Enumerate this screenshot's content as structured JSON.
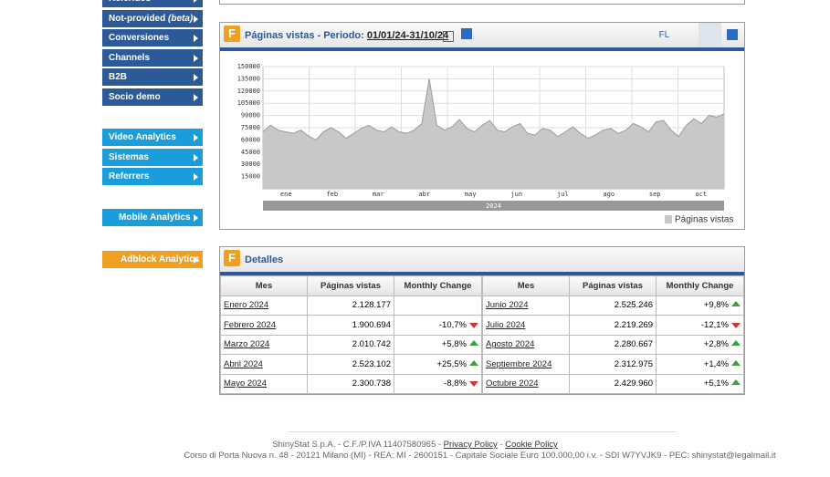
{
  "sidebar": {
    "group1": [
      {
        "label": "Referidos"
      },
      {
        "label": "Not-provided",
        "note": "(beta)"
      },
      {
        "label": "Conversiones"
      },
      {
        "label": "Channels"
      },
      {
        "label": "B2B"
      },
      {
        "label": "Socio demo"
      }
    ],
    "group2": [
      {
        "label": "Video Analytics"
      },
      {
        "label": "Sistemas"
      },
      {
        "label": "Referrers"
      }
    ],
    "mobile": "Mobile Analytics",
    "adblock": "Adblock Analytics"
  },
  "chart_panel": {
    "title": "Páginas vistas - Periodo:",
    "period": "01/01/24-31/10/24",
    "button": "FL"
  },
  "chart_data": {
    "type": "area",
    "color": "#c8c8c8",
    "line_color": "#9a9a9a",
    "values": [
      70000,
      78000,
      72000,
      70000,
      68000,
      72000,
      65000,
      60000,
      70000,
      75000,
      70000,
      62000,
      68000,
      74000,
      78000,
      72000,
      70000,
      76000,
      70000,
      68000,
      72000,
      80000,
      135000,
      78000,
      72000,
      76000,
      85000,
      74000,
      70000,
      78000,
      84000,
      72000,
      70000,
      76000,
      80000,
      68000,
      66000,
      74000,
      72000,
      64000,
      70000,
      76000,
      68000,
      62000,
      66000,
      72000,
      74000,
      68000,
      72000,
      80000,
      76000,
      70000,
      82000,
      84000,
      72000,
      64000,
      78000,
      86000,
      80000,
      90000,
      88000,
      92000
    ],
    "month_labels": [
      "ene",
      "feb",
      "mar",
      "abr",
      "may",
      "jun",
      "jul",
      "ago",
      "sep",
      "oct"
    ],
    "year": "2024",
    "ylim": [
      0,
      150000
    ],
    "yticks": [
      15000,
      30000,
      45000,
      60000,
      75000,
      90000,
      105000,
      120000,
      135000,
      150000
    ],
    "grid": true,
    "legend": "Páginas vistas"
  },
  "details": {
    "title": "Detalles",
    "headers": [
      "Mes",
      "Páginas vistas",
      "Monthly Change"
    ],
    "left": [
      [
        "Enero 2024",
        "2.128.177",
        ""
      ],
      [
        "Febrero 2024",
        "1.900.694",
        "-10,7%"
      ],
      [
        "Marzo 2024",
        "2.010.742",
        "+5,8%"
      ],
      [
        "Abril 2024",
        "2.523.102",
        "+25,5%"
      ],
      [
        "Mayo 2024",
        "2.300.738",
        "-8,8%"
      ]
    ],
    "right": [
      [
        "Junio 2024",
        "2.525.246",
        "+9,8%"
      ],
      [
        "Julio 2024",
        "2.219.269",
        "-12,1%"
      ],
      [
        "Agosto 2024",
        "2.280.667",
        "+2,8%"
      ],
      [
        "Septiembre 2024",
        "2.312.975",
        "+1,4%"
      ],
      [
        "Octubre 2024",
        "2.429.960",
        "+5,1%"
      ]
    ]
  },
  "footer": {
    "line1": [
      "ShinyStat S.p.A. - C.F./P.IVA 11407580965 -",
      "Privacy Policy",
      "-",
      "Cookie Policy"
    ],
    "line2": "Corso di Porta Nuova n. 48 - 20121 Milano (MI) - REA: MI - 2600151 - Capitale Sociale Euro 100.000,00 i.v. - SDI W7YVJK9 - PEC: shinystat@legalmail.it"
  }
}
